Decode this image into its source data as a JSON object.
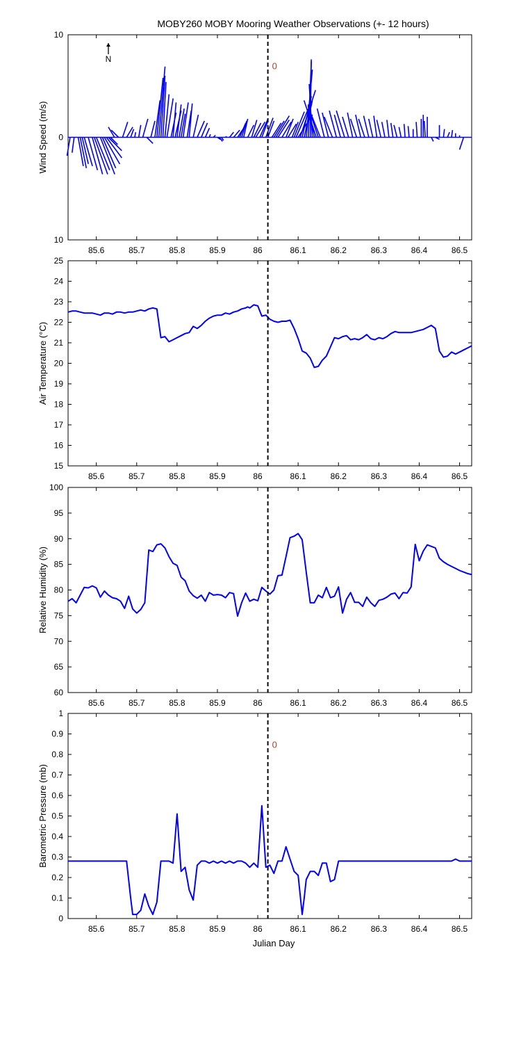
{
  "figure": {
    "title": "MOBY260 MOBY Mooring Weather Observations (+- 12 hours)",
    "xlabel": "Julian Day",
    "series_color": "#0000ff",
    "axis_color": "#000000",
    "marker_color": "#c0392b"
  },
  "chart_data": [
    {
      "type": "line",
      "panel": "wind",
      "title": "MOBY260 MOBY Mooring Weather Observations (+- 12 hours)",
      "ylabel": "Wind Speed (m/s)",
      "xlabel": "",
      "xlim": [
        85.53,
        86.53
      ],
      "ylim": [
        -10,
        10
      ],
      "xticks": [
        85.6,
        85.7,
        85.8,
        85.9,
        86,
        86.1,
        86.2,
        86.3,
        86.4,
        86.5
      ],
      "yticks": [
        -10,
        0,
        10
      ],
      "ytick_labels": [
        "10",
        "0",
        "10"
      ],
      "north_label": "N",
      "marker_label": "0",
      "marker_value_y": 7,
      "vline_x": 86.025,
      "sticks": [
        [
          85.535,
          -0.3,
          -1.8
        ],
        [
          85.545,
          -0.2,
          -1.5
        ],
        [
          85.555,
          0.5,
          -2.8
        ],
        [
          85.56,
          0.6,
          -3.0
        ],
        [
          85.565,
          0.6,
          -2.6
        ],
        [
          85.57,
          0.8,
          -2.8
        ],
        [
          85.58,
          0.9,
          -3.2
        ],
        [
          85.59,
          1.0,
          -3.6
        ],
        [
          85.595,
          1.3,
          -3.6
        ],
        [
          85.6,
          1.3,
          -3.2
        ],
        [
          85.61,
          1.4,
          -3.6
        ],
        [
          85.615,
          1.3,
          -3.0
        ],
        [
          85.62,
          1.5,
          -2.6
        ],
        [
          85.625,
          1.5,
          -2.0
        ],
        [
          85.63,
          1.3,
          -1.3
        ],
        [
          85.635,
          0.7,
          -0.7
        ],
        [
          85.645,
          -0.6,
          1.0
        ],
        [
          85.655,
          -0.7,
          0.7
        ],
        [
          85.665,
          0.5,
          1.5
        ],
        [
          85.675,
          0.6,
          1.0
        ],
        [
          85.685,
          0.3,
          0.8
        ],
        [
          85.695,
          0.1,
          0.5
        ],
        [
          85.705,
          0.2,
          1.2
        ],
        [
          85.715,
          0.5,
          1.8
        ],
        [
          85.725,
          0.6,
          -0.6
        ],
        [
          85.735,
          0.4,
          1.6
        ],
        [
          85.745,
          0.5,
          3.6
        ],
        [
          85.75,
          0.6,
          5.8
        ],
        [
          85.755,
          0.6,
          6.9
        ],
        [
          85.76,
          0.4,
          6.0
        ],
        [
          85.765,
          0.3,
          5.4
        ],
        [
          85.77,
          0.4,
          4.2
        ],
        [
          85.775,
          0.6,
          3.8
        ],
        [
          85.785,
          0.5,
          2.4
        ],
        [
          85.79,
          0.3,
          3.4
        ],
        [
          85.795,
          0.6,
          2.6
        ],
        [
          85.8,
          0.4,
          3.2
        ],
        [
          85.805,
          0.5,
          2.8
        ],
        [
          85.81,
          0.4,
          2.3
        ],
        [
          85.815,
          0.5,
          3.4
        ],
        [
          85.825,
          0.4,
          2.6
        ],
        [
          85.83,
          0.3,
          3.3
        ],
        [
          85.84,
          0.5,
          2.2
        ],
        [
          85.85,
          0.7,
          1.6
        ],
        [
          85.86,
          0.6,
          1.4
        ],
        [
          85.87,
          0.4,
          0.9
        ],
        [
          85.88,
          0.1,
          0.3
        ],
        [
          85.89,
          0.2,
          0.2
        ],
        [
          85.9,
          0.3,
          -0.2
        ],
        [
          85.905,
          0.3,
          -0.4
        ],
        [
          85.91,
          0.2,
          -0.3
        ],
        [
          85.92,
          0.1,
          0.1
        ],
        [
          85.93,
          0.4,
          0.5
        ],
        [
          85.94,
          0.6,
          0.7
        ],
        [
          85.95,
          0.8,
          1.2
        ],
        [
          85.955,
          0.6,
          1.4
        ],
        [
          85.96,
          0.5,
          1.6
        ],
        [
          85.965,
          0.4,
          1.8
        ],
        [
          85.975,
          0.6,
          1.2
        ],
        [
          85.985,
          0.5,
          1.7
        ],
        [
          85.99,
          0.7,
          1.4
        ],
        [
          85.995,
          0.9,
          1.5
        ],
        [
          86.005,
          0.8,
          1.8
        ],
        [
          86.01,
          0.6,
          1.6
        ],
        [
          86.02,
          0.7,
          1.9
        ],
        [
          86.025,
          0.6,
          1.6
        ],
        [
          86.035,
          0.9,
          1.4
        ],
        [
          86.04,
          1.0,
          1.6
        ],
        [
          86.045,
          1.3,
          2.1
        ],
        [
          86.05,
          1.1,
          1.7
        ],
        [
          86.06,
          0.9,
          1.5
        ],
        [
          86.07,
          0.7,
          1.8
        ],
        [
          86.075,
          0.8,
          1.3
        ],
        [
          86.085,
          0.6,
          1.5
        ],
        [
          86.09,
          1.0,
          2.5
        ],
        [
          86.095,
          1.2,
          2.8
        ],
        [
          86.1,
          1.4,
          2.2
        ],
        [
          86.105,
          1.5,
          4.6
        ],
        [
          86.11,
          0.9,
          4.0
        ],
        [
          86.115,
          0.8,
          3.6
        ],
        [
          86.12,
          0.6,
          6.6
        ],
        [
          86.125,
          0.3,
          7.4
        ],
        [
          86.13,
          0.1,
          7.6
        ],
        [
          86.135,
          -0.3,
          5.2
        ],
        [
          86.14,
          -0.6,
          3.2
        ],
        [
          86.145,
          -1.2,
          3.6
        ],
        [
          86.15,
          -1.0,
          3.0
        ],
        [
          86.155,
          -1.0,
          2.5
        ],
        [
          86.165,
          -0.7,
          2.8
        ],
        [
          86.175,
          -0.6,
          2.4
        ],
        [
          86.185,
          -0.8,
          2.0
        ],
        [
          86.195,
          -0.7,
          2.6
        ],
        [
          86.205,
          -0.6,
          2.2
        ],
        [
          86.215,
          -0.8,
          2.6
        ],
        [
          86.225,
          -0.6,
          2.0
        ],
        [
          86.235,
          -0.5,
          2.4
        ],
        [
          86.245,
          -0.6,
          1.8
        ],
        [
          86.255,
          -0.5,
          2.2
        ],
        [
          86.265,
          -0.6,
          1.8
        ],
        [
          86.275,
          -0.5,
          2.1
        ],
        [
          86.285,
          -0.4,
          1.8
        ],
        [
          86.295,
          -0.3,
          2.1
        ],
        [
          86.305,
          -0.4,
          1.7
        ],
        [
          86.315,
          -0.3,
          1.5
        ],
        [
          86.325,
          -0.2,
          1.7
        ],
        [
          86.335,
          -0.2,
          1.4
        ],
        [
          86.345,
          -0.3,
          1.2
        ],
        [
          86.355,
          -0.2,
          1.0
        ],
        [
          86.365,
          -0.1,
          1.3
        ],
        [
          86.375,
          -0.1,
          1.1
        ],
        [
          86.385,
          0.0,
          0.8
        ],
        [
          86.395,
          -0.1,
          1.5
        ],
        [
          86.405,
          0.0,
          1.8
        ],
        [
          86.41,
          0.0,
          2.2
        ],
        [
          86.415,
          -0.1,
          1.6
        ],
        [
          86.42,
          0.0,
          2.0
        ],
        [
          86.43,
          0.2,
          -0.4
        ],
        [
          86.44,
          0.4,
          -0.2
        ],
        [
          86.45,
          0.0,
          1.2
        ],
        [
          86.46,
          0.1,
          0.8
        ],
        [
          86.47,
          0.2,
          0.5
        ],
        [
          86.48,
          0.1,
          0.7
        ],
        [
          86.49,
          0.0,
          0.4
        ],
        [
          86.5,
          0.0,
          0.2
        ],
        [
          86.51,
          -0.4,
          -1.2
        ]
      ]
    },
    {
      "type": "line",
      "panel": "air_temperature",
      "ylabel": "Air Temperature (°C)",
      "xlabel": "",
      "xlim": [
        85.53,
        86.53
      ],
      "ylim": [
        15,
        25
      ],
      "xticks": [
        85.6,
        85.7,
        85.8,
        85.9,
        86,
        86.1,
        86.2,
        86.3,
        86.4,
        86.5
      ],
      "yticks": [
        15,
        16,
        17,
        18,
        19,
        20,
        21,
        22,
        23,
        24,
        25
      ],
      "ytick_labels": [
        "15",
        "16",
        "17",
        "18",
        "19",
        "20",
        "21",
        "22",
        "23",
        "24",
        "25"
      ],
      "vline_x": 86.025,
      "x": [
        85.53,
        85.54,
        85.55,
        85.56,
        85.57,
        85.58,
        85.59,
        85.6,
        85.61,
        85.62,
        85.63,
        85.64,
        85.65,
        85.66,
        85.67,
        85.68,
        85.69,
        85.7,
        85.71,
        85.72,
        85.73,
        85.74,
        85.75,
        85.76,
        85.77,
        85.78,
        85.79,
        85.8,
        85.81,
        85.82,
        85.83,
        85.84,
        85.85,
        85.86,
        85.87,
        85.88,
        85.89,
        85.9,
        85.91,
        85.92,
        85.93,
        85.94,
        85.95,
        85.96,
        85.97,
        85.975,
        85.98,
        85.99,
        86.0,
        86.01,
        86.02,
        86.03,
        86.04,
        86.05,
        86.06,
        86.07,
        86.08,
        86.09,
        86.1,
        86.11,
        86.12,
        86.13,
        86.14,
        86.15,
        86.16,
        86.17,
        86.18,
        86.19,
        86.2,
        86.21,
        86.22,
        86.23,
        86.24,
        86.25,
        86.26,
        86.27,
        86.28,
        86.29,
        86.3,
        86.31,
        86.32,
        86.33,
        86.34,
        86.35,
        86.36,
        86.37,
        86.38,
        86.39,
        86.4,
        86.41,
        86.42,
        86.43,
        86.44,
        86.45,
        86.46,
        86.47,
        86.48,
        86.49,
        86.5,
        86.51,
        86.52,
        86.53
      ],
      "values": [
        22.5,
        22.55,
        22.55,
        22.5,
        22.45,
        22.45,
        22.45,
        22.4,
        22.35,
        22.45,
        22.45,
        22.4,
        22.5,
        22.5,
        22.45,
        22.5,
        22.5,
        22.55,
        22.6,
        22.55,
        22.65,
        22.7,
        22.65,
        21.25,
        21.3,
        21.05,
        21.15,
        21.25,
        21.35,
        21.45,
        21.5,
        21.8,
        21.7,
        21.85,
        22.05,
        22.2,
        22.3,
        22.35,
        22.35,
        22.45,
        22.4,
        22.5,
        22.55,
        22.65,
        22.7,
        22.75,
        22.7,
        22.85,
        22.8,
        22.3,
        22.35,
        22.15,
        22.05,
        22.0,
        22.05,
        22.05,
        22.1,
        21.7,
        21.2,
        20.6,
        20.5,
        20.25,
        19.8,
        19.85,
        20.15,
        20.35,
        20.8,
        21.25,
        21.2,
        21.3,
        21.35,
        21.15,
        21.2,
        21.15,
        21.25,
        21.4,
        21.2,
        21.15,
        21.25,
        21.2,
        21.3,
        21.45,
        21.55,
        21.5,
        21.5,
        21.5,
        21.5,
        21.55,
        21.6,
        21.65,
        21.75,
        21.85,
        21.7,
        20.6,
        20.3,
        20.35,
        20.55,
        20.45,
        20.55,
        20.65,
        20.75,
        20.85
      ]
    },
    {
      "type": "line",
      "panel": "relative_humidity",
      "ylabel": "Relative Humidity (%)",
      "xlabel": "",
      "xlim": [
        85.53,
        86.53
      ],
      "ylim": [
        60,
        100
      ],
      "xticks": [
        85.6,
        85.7,
        85.8,
        85.9,
        86,
        86.1,
        86.2,
        86.3,
        86.4,
        86.5
      ],
      "yticks": [
        60,
        65,
        70,
        75,
        80,
        85,
        90,
        95,
        100
      ],
      "ytick_labels": [
        "60",
        "65",
        "70",
        "75",
        "80",
        "85",
        "90",
        "95",
        "100"
      ],
      "vline_x": 86.025,
      "x": [
        85.53,
        85.54,
        85.55,
        85.56,
        85.57,
        85.58,
        85.59,
        85.6,
        85.61,
        85.62,
        85.63,
        85.64,
        85.65,
        85.66,
        85.67,
        85.68,
        85.69,
        85.7,
        85.71,
        85.72,
        85.73,
        85.74,
        85.75,
        85.76,
        85.77,
        85.78,
        85.79,
        85.8,
        85.81,
        85.82,
        85.83,
        85.84,
        85.85,
        85.86,
        85.87,
        85.88,
        85.89,
        85.9,
        85.91,
        85.92,
        85.93,
        85.94,
        85.95,
        85.96,
        85.97,
        85.98,
        85.99,
        86.0,
        86.01,
        86.02,
        86.03,
        86.04,
        86.05,
        86.06,
        86.07,
        86.08,
        86.09,
        86.1,
        86.11,
        86.12,
        86.13,
        86.14,
        86.15,
        86.16,
        86.17,
        86.18,
        86.19,
        86.2,
        86.21,
        86.22,
        86.23,
        86.24,
        86.25,
        86.26,
        86.27,
        86.28,
        86.29,
        86.3,
        86.31,
        86.32,
        86.33,
        86.34,
        86.35,
        86.36,
        86.37,
        86.38,
        86.39,
        86.4,
        86.41,
        86.42,
        86.43,
        86.44,
        86.45,
        86.46,
        86.47,
        86.48,
        86.49,
        86.5,
        86.51,
        86.52,
        86.53
      ],
      "values": [
        77.8,
        78.3,
        77.5,
        79.0,
        80.5,
        80.4,
        80.8,
        80.4,
        78.6,
        79.8,
        79.0,
        78.5,
        78.3,
        77.8,
        76.4,
        78.8,
        76.3,
        75.5,
        76.2,
        77.5,
        87.8,
        87.5,
        88.8,
        89.0,
        88.2,
        86.5,
        85.2,
        84.8,
        82.5,
        81.8,
        79.8,
        78.9,
        78.4,
        79.0,
        77.8,
        79.5,
        79.0,
        79.1,
        79.0,
        78.5,
        79.5,
        79.3,
        74.9,
        77.5,
        79.4,
        77.8,
        78.2,
        77.9,
        80.5,
        79.8,
        79.2,
        80.0,
        82.8,
        82.9,
        86.5,
        90.2,
        90.5,
        91.0,
        89.8,
        83.5,
        77.5,
        77.5,
        79.0,
        78.5,
        80.5,
        78.5,
        78.8,
        80.6,
        75.5,
        78.2,
        79.5,
        77.6,
        77.6,
        76.8,
        78.6,
        77.5,
        76.8,
        78.0,
        78.2,
        78.6,
        79.2,
        79.4,
        78.3,
        79.5,
        79.4,
        80.6,
        88.9,
        85.7,
        87.6,
        88.8,
        88.5,
        88.2,
        86.2,
        85.5,
        85.0,
        84.6,
        84.2,
        83.8,
        83.5,
        83.2,
        83.0
      ]
    },
    {
      "type": "line",
      "panel": "barometric_pressure",
      "ylabel": "Barometric Pressure (mb)",
      "xlabel": "Julian Day",
      "xlim": [
        85.53,
        86.53
      ],
      "ylim": [
        0,
        1
      ],
      "xticks": [
        85.6,
        85.7,
        85.8,
        85.9,
        86,
        86.1,
        86.2,
        86.3,
        86.4,
        86.5
      ],
      "yticks": [
        0,
        0.1,
        0.2,
        0.3,
        0.4,
        0.5,
        0.6,
        0.7,
        0.8,
        0.9,
        1
      ],
      "ytick_labels": [
        "0",
        "0.1",
        "0.2",
        "0.3",
        "0.4",
        "0.5",
        "0.6",
        "0.7",
        "0.8",
        "0.9",
        "1"
      ],
      "marker_label": "0",
      "marker_value_y": 0.85,
      "vline_x": 86.025,
      "x": [
        85.53,
        85.55,
        85.6,
        85.65,
        85.675,
        85.685,
        85.69,
        85.7,
        85.71,
        85.72,
        85.73,
        85.74,
        85.75,
        85.76,
        85.77,
        85.78,
        85.79,
        85.8,
        85.81,
        85.82,
        85.83,
        85.84,
        85.85,
        85.86,
        85.87,
        85.88,
        85.89,
        85.9,
        85.91,
        85.92,
        85.93,
        85.94,
        85.95,
        85.96,
        85.97,
        85.98,
        85.99,
        86.0,
        86.01,
        86.02,
        86.03,
        86.04,
        86.05,
        86.06,
        86.07,
        86.08,
        86.09,
        86.1,
        86.11,
        86.115,
        86.12,
        86.13,
        86.14,
        86.15,
        86.16,
        86.17,
        86.18,
        86.19,
        86.2,
        86.21,
        86.25,
        86.3,
        86.35,
        86.4,
        86.45,
        86.48,
        86.49,
        86.5,
        86.53
      ],
      "values": [
        0.28,
        0.28,
        0.28,
        0.28,
        0.28,
        0.1,
        0.02,
        0.02,
        0.04,
        0.12,
        0.06,
        0.02,
        0.08,
        0.28,
        0.28,
        0.28,
        0.27,
        0.51,
        0.23,
        0.25,
        0.14,
        0.09,
        0.26,
        0.28,
        0.28,
        0.27,
        0.28,
        0.27,
        0.28,
        0.27,
        0.28,
        0.27,
        0.28,
        0.28,
        0.27,
        0.25,
        0.27,
        0.25,
        0.55,
        0.25,
        0.26,
        0.22,
        0.28,
        0.28,
        0.35,
        0.29,
        0.23,
        0.21,
        0.02,
        0.1,
        0.19,
        0.23,
        0.23,
        0.21,
        0.27,
        0.27,
        0.18,
        0.19,
        0.28,
        0.28,
        0.28,
        0.28,
        0.28,
        0.28,
        0.28,
        0.28,
        0.29,
        0.28,
        0.28
      ]
    }
  ]
}
